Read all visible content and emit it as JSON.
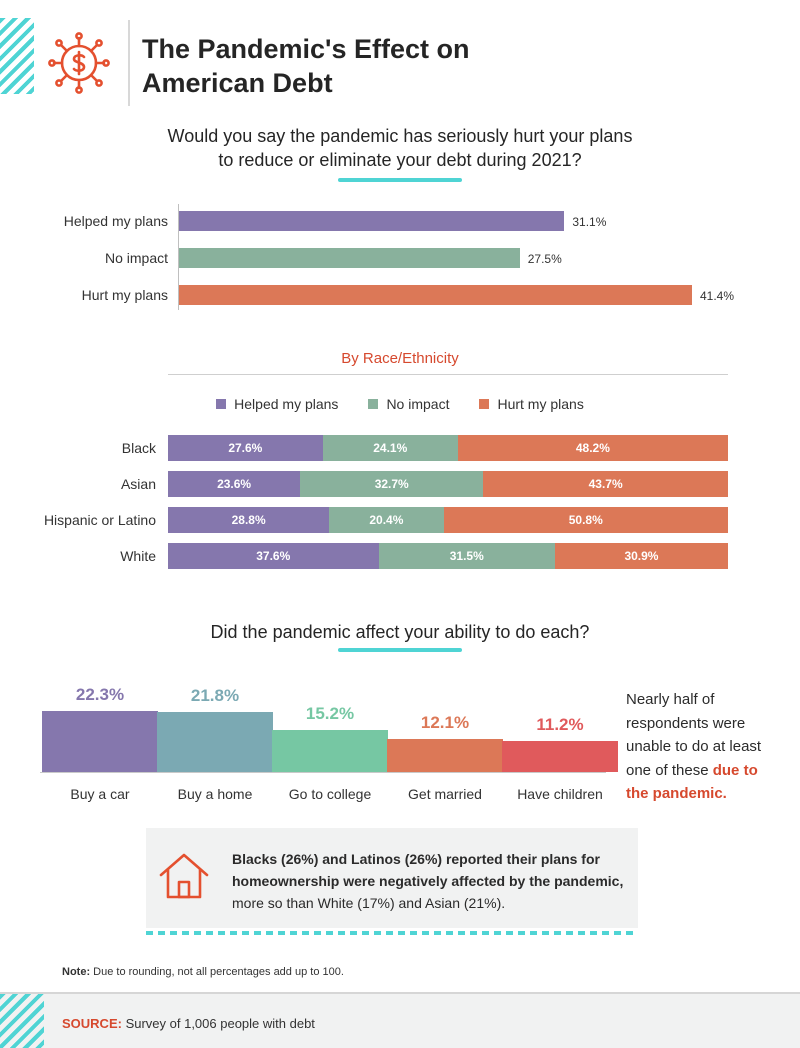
{
  "header": {
    "title_line1": "The Pandemic's Effect on",
    "title_line2": "American Debt"
  },
  "colors": {
    "helped": "#8577ad",
    "no_impact": "#89b19c",
    "hurt": "#dc7857",
    "accent": "#4fd4d4",
    "highlight": "#d6492e"
  },
  "chart_data": [
    {
      "type": "bar",
      "orientation": "horizontal",
      "title_line1": "Would you say the pandemic has seriously hurt your plans",
      "title_line2": "to reduce or eliminate your debt during 2021?",
      "categories": [
        "Helped my plans",
        "No impact",
        "Hurt my plans"
      ],
      "values": [
        31.1,
        27.5,
        41.4
      ],
      "value_labels": [
        "31.1%",
        "27.5%",
        "41.4%"
      ],
      "colors": [
        "#8577ad",
        "#89b19c",
        "#dc7857"
      ],
      "xlim": [
        0,
        41.4
      ]
    },
    {
      "type": "bar",
      "orientation": "horizontal",
      "stacked": true,
      "title": "By Race/Ethnicity",
      "legend": [
        "Helped my plans",
        "No impact",
        "Hurt my plans"
      ],
      "legend_position": "top-center",
      "categories": [
        "Black",
        "Asian",
        "Hispanic or Latino",
        "White"
      ],
      "series": [
        {
          "name": "Helped my plans",
          "values": [
            27.6,
            23.6,
            28.8,
            37.6
          ],
          "labels": [
            "27.6%",
            "23.6%",
            "28.8%",
            "37.6%"
          ],
          "color": "#8577ad"
        },
        {
          "name": "No impact",
          "values": [
            24.1,
            32.7,
            20.4,
            31.5
          ],
          "labels": [
            "24.1%",
            "32.7%",
            "20.4%",
            "31.5%"
          ],
          "color": "#89b19c"
        },
        {
          "name": "Hurt my plans",
          "values": [
            48.2,
            43.7,
            50.8,
            30.9
          ],
          "labels": [
            "48.2%",
            "43.7%",
            "50.8%",
            "30.9%"
          ],
          "color": "#dc7857"
        }
      ]
    },
    {
      "type": "bar",
      "orientation": "vertical",
      "title": "Did the pandemic affect your ability to do each?",
      "categories": [
        "Buy a car",
        "Buy a home",
        "Go to college",
        "Get married",
        "Have children"
      ],
      "values": [
        22.3,
        21.8,
        15.2,
        12.1,
        11.2
      ],
      "value_labels": [
        "22.3%",
        "21.8%",
        "15.2%",
        "12.1%",
        "11.2%"
      ],
      "colors": [
        "#8577ad",
        "#7ba9b3",
        "#76c7a3",
        "#dc7857",
        "#e05a5c"
      ],
      "ylim": [
        0,
        22.3
      ]
    }
  ],
  "side_note": {
    "line1": "Nearly half of",
    "line2": "respondents were",
    "line3": "unable to do at least",
    "line4_plain": "one of these ",
    "line4_hl": "due to",
    "line5_hl": "the pandemic."
  },
  "callout": {
    "bold_line1": "Blacks (26%) and Latinos (26%) reported their plans for",
    "bold_line2": "homeownership were negatively affected by the pandemic,",
    "line3": "more so than White (17%) and Asian (21%)."
  },
  "footnote": {
    "label": "Note:",
    "text": " Due to rounding, not all percentages add up to 100."
  },
  "source": {
    "label": "SOURCE:",
    "text": " Survey of 1,006 people with debt"
  }
}
